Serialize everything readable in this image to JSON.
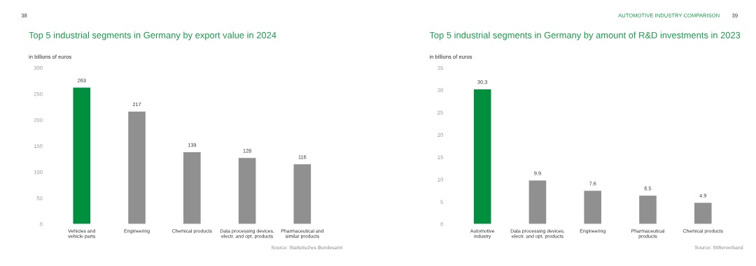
{
  "chart_data": [
    {
      "type": "bar",
      "title": "Top 5 industrial segments in Germany by export value in 2024",
      "ylabel": "in billions of euros",
      "categories": [
        "Vehicles and\nvehicle parts",
        "Engineering",
        "Chemical products",
        "Data processing devices,\nelectr. and opt. products",
        "Pharmaceutical and\nsimilar products"
      ],
      "values": [
        263,
        217,
        139,
        128,
        116
      ],
      "colors": [
        "#008f3e",
        "#8f908f",
        "#8f908f",
        "#8f908f",
        "#8f908f"
      ],
      "ylim": [
        0,
        300
      ],
      "yticks": [
        0,
        50,
        100,
        150,
        200,
        250,
        300
      ],
      "data_labels": true,
      "grid": false,
      "legend": false,
      "annotations": [
        "38",
        "Source: Statistisches Bundesamt"
      ]
    },
    {
      "type": "bar",
      "title": "Top 5 industrial segments in Germany by amount of R&D investments in 2023",
      "ylabel": "in billions of euros",
      "categories": [
        "Automotive\nindustry",
        "Data processing devices,\nelectr. and opt. products",
        "Engineering",
        "Pharmaceutical\nproducts",
        "Chemical products"
      ],
      "values": [
        30.3,
        9.9,
        7.6,
        6.5,
        4.9
      ],
      "colors": [
        "#008f3e",
        "#8f908f",
        "#8f908f",
        "#8f908f",
        "#8f908f"
      ],
      "ylim": [
        0,
        35
      ],
      "yticks": [
        0,
        5,
        10,
        15,
        20,
        25,
        30,
        35
      ],
      "data_labels": true,
      "grid": false,
      "legend": false,
      "annotations": [
        "AUTOMOTIVE INDUSTRY COMPARISON",
        "39",
        "Source: Stifterverband"
      ]
    }
  ]
}
